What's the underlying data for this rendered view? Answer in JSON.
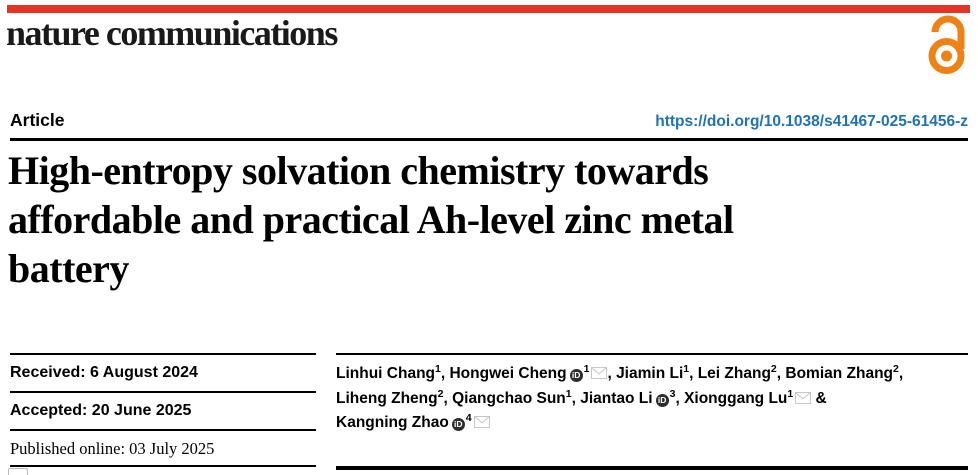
{
  "header": {
    "journal": "nature communications",
    "brand_color": "#e63323",
    "open_access_color": "#ef8214"
  },
  "article": {
    "kicker": "Article",
    "doi": "https://doi.org/10.1038/s41467-025-61456-z",
    "doi_color": "#1f72b8",
    "title": "High-entropy solvation chemistry towards affordable and practical Ah-level zinc metal battery",
    "title_lines": [
      "High-entropy solvation chemistry towards",
      "affordable and practical Ah-level zinc metal",
      "battery"
    ]
  },
  "dates": {
    "received": "Received: 6 August 2024",
    "accepted": "Accepted: 20 June 2025",
    "published_online": "Published online: 03 July 2025"
  },
  "authors": {
    "lines": [
      [
        {
          "name": "Linhui Chang",
          "sup": "1",
          "after": ", "
        },
        {
          "name": "Hongwei Cheng",
          "orcid": true,
          "sup": "1",
          "mail": true,
          "after": ", "
        },
        {
          "name": "Jiamin Li",
          "sup": "1",
          "after": ", "
        },
        {
          "name": "Lei Zhang",
          "sup": "2",
          "after": ", "
        },
        {
          "name": "Bomian Zhang",
          "sup": "2",
          "after": ","
        }
      ],
      [
        {
          "name": "Liheng Zheng",
          "sup": "2",
          "after": ", "
        },
        {
          "name": "Qiangchao Sun",
          "sup": "1",
          "after": ", "
        },
        {
          "name": "Jiantao Li",
          "orcid": true,
          "sup": "3",
          "after": ", "
        },
        {
          "name": "Xionggang Lu",
          "sup": "1",
          "mail": true,
          "after": " &"
        }
      ],
      [
        {
          "name": "Kangning Zhao",
          "orcid": true,
          "sup": "4",
          "mail": true,
          "after": ""
        }
      ]
    ]
  },
  "icons": {
    "orcid_label": "iD",
    "orcid_name": "orcid-icon",
    "mail_name": "mail-icon"
  }
}
